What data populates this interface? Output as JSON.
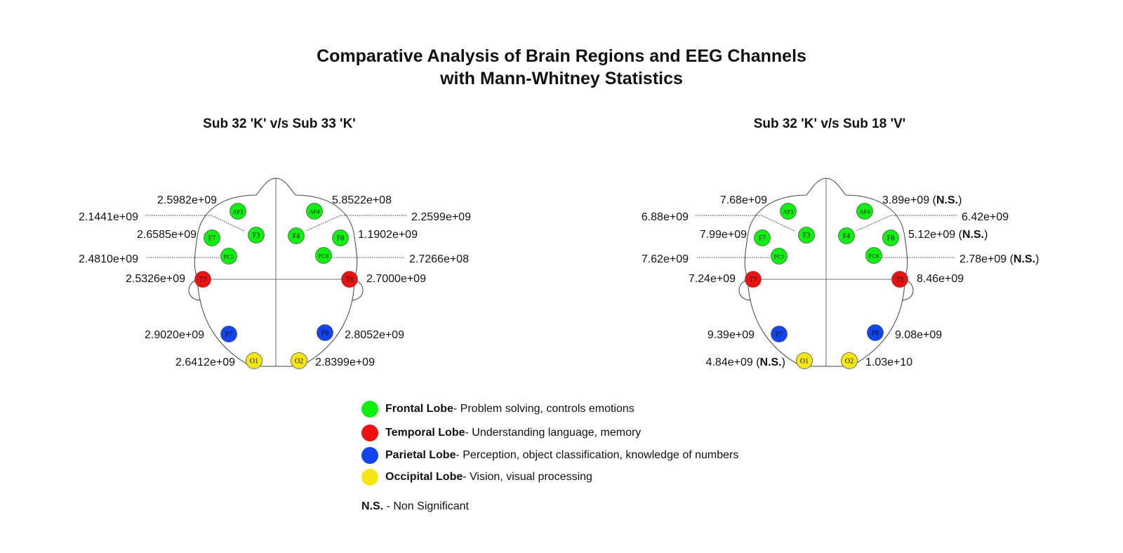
{
  "title_line1": "Comparative Analysis of Brain Regions and EEG Channels",
  "title_line2": "with Mann-Whitney Statistics",
  "colors": {
    "frontal": "#11ee11",
    "temporal": "#ee1111",
    "parietal": "#1144ee",
    "occipital": "#f5e614"
  },
  "panels": [
    {
      "title": "Sub 32 'K' v/s Sub 33 'K'",
      "values": {
        "AF3": "2.5982e+09",
        "F3": "2.1441e+09",
        "F7": "2.6585e+09",
        "FC5": "2.4810e+09",
        "T7": "2.5326e+09",
        "P7": "2.9020e+09",
        "O1": "2.6412e+09",
        "AF4": "5.8522e+08",
        "F4": "2.2599e+09",
        "F8": "1.1902e+09",
        "FC6": "2.7266e+08",
        "T8": "2.7000e+09",
        "P8": "2.8052e+09",
        "O2": "2.8399e+09"
      },
      "non_significant": []
    },
    {
      "title": "Sub 32 'K' v/s Sub 18 'V'",
      "values": {
        "AF3": "7.68e+09",
        "F3": "6.88e+09",
        "F7": "7.99e+09",
        "FC5": "7.62e+09",
        "T7": "7.24e+09",
        "P7": "9.39e+09",
        "O1": "4.84e+09",
        "AF4": "3.89e+09",
        "F4": "6.42e+09",
        "F8": "5.12e+09",
        "FC6": "2.78e+09",
        "T8": "8.46e+09",
        "P8": "9.08e+09",
        "O2": "1.03e+10"
      },
      "non_significant": [
        "AF4",
        "F8",
        "FC6",
        "O1"
      ]
    }
  ],
  "ns_tag": "N.S.",
  "channels": [
    {
      "name": "AF3",
      "lobe": "frontal"
    },
    {
      "name": "F3",
      "lobe": "frontal"
    },
    {
      "name": "F7",
      "lobe": "frontal"
    },
    {
      "name": "FC5",
      "lobe": "frontal"
    },
    {
      "name": "T7",
      "lobe": "temporal"
    },
    {
      "name": "P7",
      "lobe": "parietal"
    },
    {
      "name": "O1",
      "lobe": "occipital"
    },
    {
      "name": "AF4",
      "lobe": "frontal"
    },
    {
      "name": "F4",
      "lobe": "frontal"
    },
    {
      "name": "F8",
      "lobe": "frontal"
    },
    {
      "name": "FC6",
      "lobe": "frontal"
    },
    {
      "name": "T8",
      "lobe": "temporal"
    },
    {
      "name": "P8",
      "lobe": "parietal"
    },
    {
      "name": "O2",
      "lobe": "occipital"
    }
  ],
  "legend": [
    {
      "lobe": "frontal",
      "name": "Frontal Lobe",
      "desc": " - Problem solving, controls emotions"
    },
    {
      "lobe": "temporal",
      "name": "Temporal Lobe",
      "desc": " - Understanding language, memory"
    },
    {
      "lobe": "parietal",
      "name": "Parietal Lobe",
      "desc": " - Perception, object classification, knowledge of numbers"
    },
    {
      "lobe": "occipital",
      "name": "Occipital Lobe",
      "desc": " - Vision, visual processing"
    }
  ],
  "ns_note": {
    "term": "N.S.",
    "desc": " - Non Significant"
  }
}
